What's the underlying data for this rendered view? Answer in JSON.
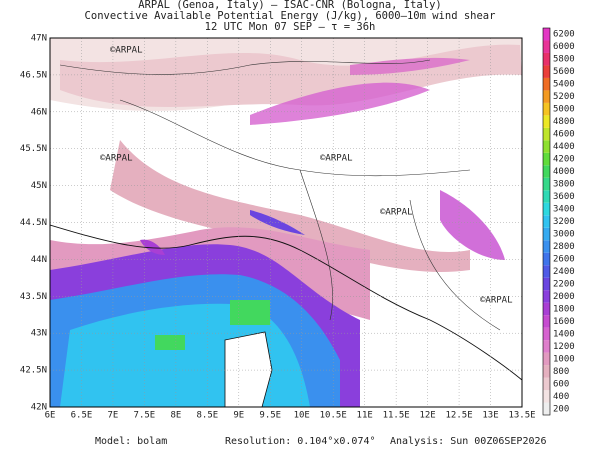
{
  "header": {
    "lines": [
      "ARPAL (Genoa, Italy)  –  ISAC-CNR (Bologna, Italy)",
      "Convective Available Potential Energy (J/kg), 6000–10m wind shear",
      "12 UTC Mon 07 SEP  –  τ = 36h"
    ]
  },
  "map": {
    "lat_labels": [
      "47N",
      "46.5N",
      "46N",
      "45.5N",
      "45N",
      "44.5N",
      "44N",
      "43.5N",
      "43N",
      "42.5N",
      "42N"
    ],
    "lon_labels": [
      "6E",
      "6.5E",
      "7E",
      "7.5E",
      "8E",
      "8.5E",
      "9E",
      "9.5E",
      "10E",
      "10.5E",
      "11E",
      "11.5E",
      "12E",
      "12.5E",
      "13E",
      "13.5E"
    ],
    "watermark": "©ARPAL"
  },
  "colorbar": {
    "levels": [
      200,
      400,
      600,
      800,
      1000,
      1200,
      1400,
      1600,
      1800,
      2000,
      2200,
      2400,
      2600,
      2800,
      3000,
      3200,
      3400,
      3600,
      3800,
      4000,
      4200,
      4400,
      4600,
      4800,
      5000,
      5200,
      5400,
      5600,
      5800,
      6000,
      6200
    ],
    "colors": [
      "#eeeeee",
      "#f3e3e3",
      "#ecc9cf",
      "#e5b0bf",
      "#e29ac0",
      "#de7fcb",
      "#d663d0",
      "#c64bd0",
      "#a93fd4",
      "#8a3fdc",
      "#6a45e0",
      "#4f5ae6",
      "#3f74ea",
      "#3a90ee",
      "#35aaf0",
      "#31c3f0",
      "#2ed8df",
      "#2fd9b5",
      "#36d889",
      "#42d85e",
      "#61dc3c",
      "#8ee02f",
      "#bfe52a",
      "#ece826",
      "#f5c323",
      "#f39a22",
      "#ef6d24",
      "#ea3f3a",
      "#e8306a",
      "#e83497",
      "#e338c4"
    ]
  },
  "footer": {
    "model": "Model:  bolam",
    "resolution": "Resolution: 0.104°x0.074°",
    "analysis": "Analysis: Sun 00Z06SEP2026"
  }
}
